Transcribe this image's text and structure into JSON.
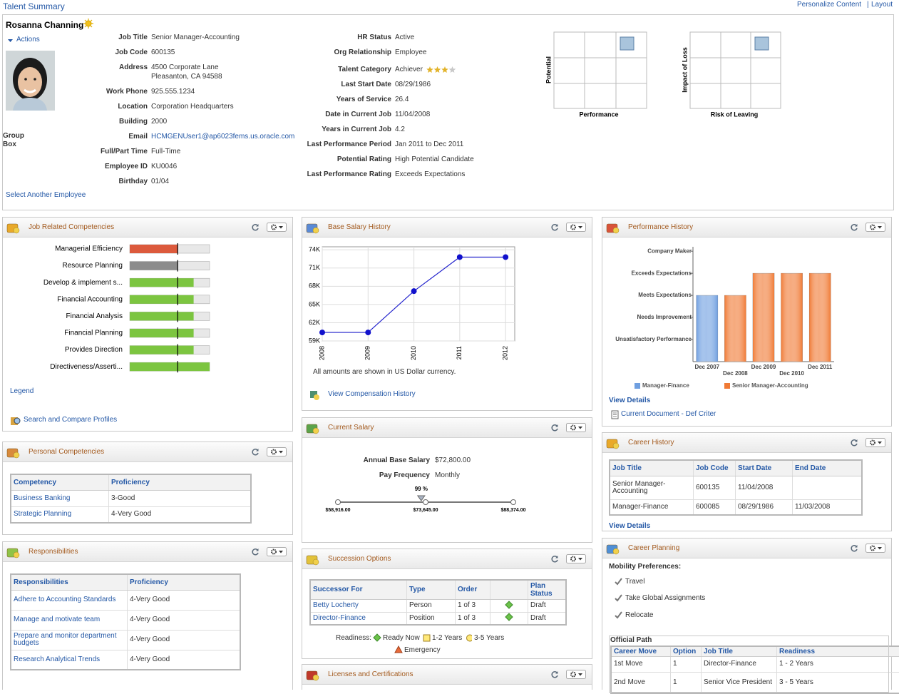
{
  "header": {
    "title": "Talent Summary",
    "personalize": "Personalize Content",
    "separator": "|",
    "layout": "Layout"
  },
  "profile": {
    "name": "Rosanna Channing",
    "actions": "Actions",
    "group_box": "Group Box",
    "select_employee": "Select Another Employee",
    "details_left": [
      {
        "label": "Job Title",
        "value": "Senior Manager-Accounting"
      },
      {
        "label": "Job Code",
        "value": "600135"
      },
      {
        "label": "Address",
        "value": "4500 Corporate Lane",
        "value_line2": "Pleasanton, CA 94588"
      },
      {
        "label": "Work Phone",
        "value": "925.555.1234"
      },
      {
        "label": "Location",
        "value": "Corporation Headquarters"
      },
      {
        "label": "Building",
        "value": "2000"
      },
      {
        "label": "Email",
        "value": "HCMGENUser1@ap6023fems.us.oracle.com"
      },
      {
        "label": "Full/Part Time",
        "value": "Full-Time"
      },
      {
        "label": "Employee ID",
        "value": "KU0046"
      },
      {
        "label": "Birthday",
        "value": "01/04"
      }
    ],
    "details_right": [
      {
        "label": "HR Status",
        "value": "Active"
      },
      {
        "label": "Org Relationship",
        "value": "Employee"
      },
      {
        "label": "Talent Category",
        "value": "Achiever",
        "stars": 3,
        "stars_max": 4
      },
      {
        "label": "Last Start Date",
        "value": "08/29/1986"
      },
      {
        "label": "Years of Service",
        "value": "26.4"
      },
      {
        "label": "Date in Current Job",
        "value": "11/04/2008"
      },
      {
        "label": "Years in Current Job",
        "value": "4.2"
      },
      {
        "label": "Last Performance Period",
        "value": "Jan 2011 to Dec 2011"
      },
      {
        "label": "Potential Rating",
        "value": "High Potential Candidate"
      },
      {
        "label": "Last Performance Rating",
        "value": "Exceeds Expectations"
      }
    ],
    "grids": [
      {
        "y_label": "Potential",
        "x_label": "Performance"
      },
      {
        "y_label": "Impact of Loss",
        "x_label": "Risk of Leaving"
      }
    ]
  },
  "job_competencies": {
    "title": "Job Related Competencies",
    "legend": "Legend",
    "search_compare": "Search and Compare Profiles"
  },
  "personal_competencies": {
    "title": "Personal Competencies",
    "columns": [
      "Competency",
      "Proficiency"
    ],
    "rows": [
      [
        "Business Banking",
        "3-Good"
      ],
      [
        "Strategic Planning",
        "4-Very Good"
      ]
    ]
  },
  "responsibilities": {
    "title": "Responsibilities",
    "columns": [
      "Responsibilities",
      "Proficiency"
    ],
    "rows": [
      [
        "Adhere to Accounting Standards",
        "4-Very Good"
      ],
      [
        "Manage and motivate team",
        "4-Very Good"
      ],
      [
        "Prepare and monitor department budgets",
        "4-Very Good"
      ],
      [
        "Research Analytical Trends",
        "4-Very Good"
      ]
    ]
  },
  "base_salary": {
    "title": "Base Salary History",
    "note": "All amounts are shown in US Dollar currency.",
    "link": "View Compensation History"
  },
  "current_salary": {
    "title": "Current Salary",
    "fields": [
      {
        "label": "Annual Base Salary",
        "value": "$72,800.00"
      },
      {
        "label": "Pay Frequency",
        "value": "Monthly"
      }
    ],
    "range": {
      "min": {
        "value": 58916,
        "label": "$58,916.00"
      },
      "mid": {
        "value": 73645,
        "label": "$73,645.00"
      },
      "max": {
        "value": 88374,
        "label": "$88,374.00"
      },
      "compa_ratio": {
        "value": 99,
        "label": "99 %"
      }
    }
  },
  "succession": {
    "title": "Succession Options",
    "columns": [
      "Successor For",
      "Type",
      "Order",
      "Plan Status"
    ],
    "rows": [
      [
        "Betty Locherty",
        "Person",
        "1 of 3",
        "Draft"
      ],
      [
        "Director-Finance",
        "Position",
        "1 of 3",
        "Draft"
      ]
    ],
    "readiness_label": "Readiness:",
    "readiness": [
      "Ready Now",
      "1-2 Years",
      "3-5 Years",
      "Emergency"
    ]
  },
  "licenses": {
    "title": "Licenses and Certifications"
  },
  "performance": {
    "title": "Performance History",
    "view_details": "View Details",
    "document": "Current Document - Def Criter"
  },
  "career_history": {
    "title": "Career History",
    "columns": [
      "Job Title",
      "Job Code",
      "Start Date",
      "End Date"
    ],
    "rows": [
      [
        "Senior Manager-Accounting",
        "600135",
        "11/04/2008",
        null
      ],
      [
        "Manager-Finance",
        "600085",
        "08/29/1986",
        "11/03/2008"
      ]
    ],
    "view_details": "View Details"
  },
  "career_planning": {
    "title": "Career Planning",
    "mobility_label": "Mobility Preferences:",
    "mobility": [
      "Travel",
      "Take Global Assignments",
      "Relocate"
    ],
    "official_path": {
      "title": "Official Path",
      "columns": [
        "Career Move",
        "Option",
        "Job Title",
        "Readiness"
      ],
      "rows": [
        [
          "1st Move",
          "1",
          "Director-Finance",
          "1 - 2 Years"
        ],
        [
          "2nd Move",
          "1",
          "Senior Vice President",
          "3 - 5 Years"
        ]
      ]
    }
  },
  "chart_data": [
    {
      "type": "bullet",
      "categories": [
        "Managerial Efficiency",
        "Resource Planning",
        "Develop & implement s...",
        "Financial Accounting",
        "Financial Analysis",
        "Financial Planning",
        "Provides Direction",
        "Directiveness/Asserti..."
      ],
      "values": [
        3,
        3,
        4,
        4,
        4,
        4,
        4,
        5
      ],
      "targets": [
        3,
        3,
        3,
        3,
        3,
        3,
        3,
        3
      ],
      "colors": [
        "#dc5a3c",
        "#8c8c8c",
        "#7cc540",
        "#7cc540",
        "#7cc540",
        "#7cc540",
        "#7cc540",
        "#7cc540"
      ],
      "xlim": [
        0,
        5
      ]
    },
    {
      "type": "line",
      "x": [
        2008,
        2009,
        2010,
        2011,
        2012
      ],
      "values": [
        60400,
        60400,
        67200,
        72800,
        72800
      ],
      "color": "#2222cc",
      "xlim": [
        2008,
        2012.2
      ],
      "xticks": [
        2008,
        2009,
        2010,
        2011,
        2012
      ],
      "ylim": [
        59000,
        74500
      ],
      "yticks": [
        {
          "value": 59000,
          "label": "59K"
        },
        {
          "value": 62000,
          "label": "62K"
        },
        {
          "value": 65000,
          "label": "65K"
        },
        {
          "value": 68000,
          "label": "68K"
        },
        {
          "value": 71000,
          "label": "71K"
        },
        {
          "value": 74000,
          "label": "74K"
        }
      ],
      "grid": true
    },
    {
      "type": "bar",
      "categories": [
        "Dec 2007",
        "Dec 2008",
        "Dec 2009",
        "Dec 2010",
        "Dec 2011"
      ],
      "series": [
        {
          "name": "Manager-Finance",
          "color": "#6f9fe0",
          "values": [
            3,
            null,
            null,
            null,
            null
          ]
        },
        {
          "name": "Senior Manager-Accounting",
          "color": "#f07a35",
          "values": [
            null,
            3,
            4,
            4,
            4
          ]
        }
      ],
      "ylim": [
        0,
        5.2
      ],
      "yticks": [
        {
          "value": 1,
          "label": "Unsatisfactory Performance"
        },
        {
          "value": 2,
          "label": "Needs Improvement"
        },
        {
          "value": 3,
          "label": "Meets Expectations"
        },
        {
          "value": 4,
          "label": "Exceeds Expectations"
        },
        {
          "value": 5,
          "label": "Company Maker"
        }
      ]
    }
  ]
}
